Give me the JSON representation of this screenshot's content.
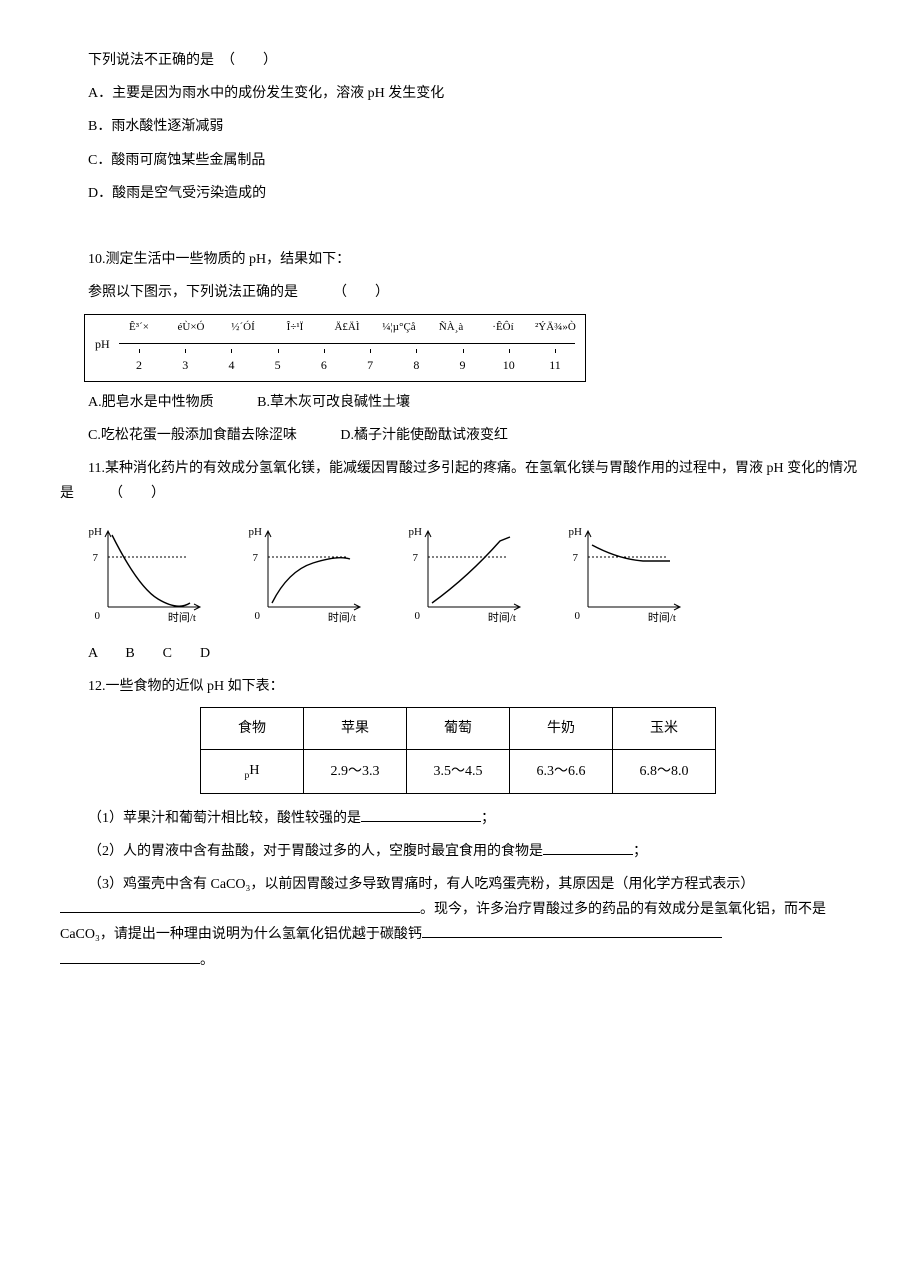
{
  "q9": {
    "stem": "下列说法不正确的是　（　　）",
    "A": "A．主要是因为雨水中的成份发生变化，溶液 pH 发生变化",
    "B": "B．雨水酸性逐渐减弱",
    "C": "C．酸雨可腐蚀某些金属制品",
    "D": "D．酸雨是空气受污染造成的"
  },
  "q10": {
    "stem": "10.测定生活中一些物质的 pH，结果如下：",
    "sub": "参照以下图示，下列说法正确的是　　　（　　）",
    "scale": {
      "axis_label": "pH",
      "labels": [
        "Ê³\n´×",
        "éÙ\n×Ó",
        "½´\nÓÍ",
        "Î÷\n¹Ï",
        "Ä£\nÄÌ",
        "¼¦\nµ°\nÇå",
        "ÑÀ\n¸à",
        "·Ê\nÔí",
        "²Ý\nÄ¾\n»Ò"
      ],
      "ticks": [
        "2",
        "3",
        "4",
        "5",
        "6",
        "7",
        "8",
        "9",
        "10",
        "11"
      ]
    },
    "A": "A.肥皂水是中性物质",
    "B": "B.草木灰可改良碱性土壤",
    "C": "C.吃松花蛋一般添加食醋去除涩味",
    "D": "D.橘子汁能使酚酞试液变红"
  },
  "q11": {
    "stem": "11.某种消化药片的有效成分氢氧化镁，能减缓因胃酸过多引起的疼痛。在氢氧化镁与胃酸作用的过程中，胃液 pH 变化的情况是　　　（　　）",
    "labels": "A　　B　　C　　D",
    "charts": [
      {
        "type": "decay_above",
        "y_label": "pH",
        "y_ref": "7",
        "x_origin": "0",
        "x_label": "时间/t",
        "stroke": "#000",
        "y_ref_style": "dotted"
      },
      {
        "type": "rise_below",
        "y_label": "pH",
        "y_ref": "7",
        "x_origin": "0",
        "x_label": "时间/t",
        "stroke": "#000",
        "y_ref_style": "dotted"
      },
      {
        "type": "rise_straight",
        "y_label": "pH",
        "y_ref": "7",
        "x_origin": "0",
        "x_label": "时间/t",
        "stroke": "#000",
        "y_ref_style": "dotted"
      },
      {
        "type": "decay_to7",
        "y_label": "pH",
        "y_ref": "7",
        "x_origin": "0",
        "x_label": "时间/t",
        "stroke": "#000",
        "y_ref_style": "dotted"
      }
    ]
  },
  "q12": {
    "stem": "12.一些食物的近似 pH 如下表：",
    "table": {
      "headers": [
        "食物",
        "苹果",
        "葡萄",
        "牛奶",
        "玉米"
      ],
      "row_label": "pH",
      "values": [
        "2.9～3.3",
        "3.5～4.5",
        "6.3～6.6",
        "6.8～8.0"
      ]
    },
    "p1a": "（1）苹果汁和葡萄汁相比较，酸性较强的是",
    "p1b": "；",
    "p2a": "（2）人的胃液中含有盐酸，对于胃酸过多的人，空腹时最宜食用的食物是",
    "p2b": "；",
    "p3a": "（3）鸡蛋壳中含有 CaCO₃，以前因胃酸过多导致胃痛时，有人吃鸡蛋壳粉，其原因是（用化学方程式表示）",
    "p3b": "。现今，许多治疗胃酸过多的药品的有效成分是氢氧化铝，而不是 CaCO₃，请提出一种理由说明为什么氢氧化铝优越于碳酸钙",
    "p3c": "。"
  }
}
